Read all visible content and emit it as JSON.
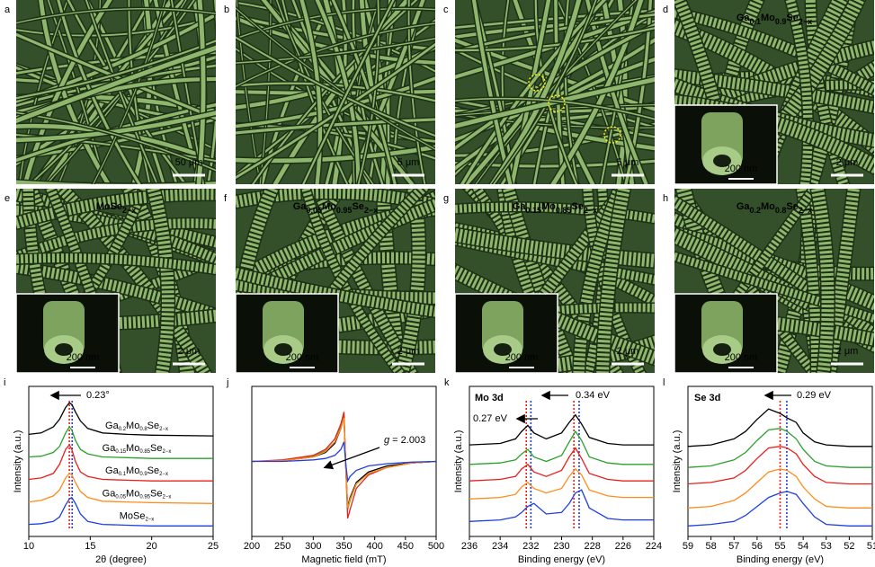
{
  "panels": [
    {
      "label": "a",
      "scale_bar": "50 μm"
    },
    {
      "label": "b",
      "scale_bar": "5 μm"
    },
    {
      "label": "c",
      "scale_bar": "5 μm"
    },
    {
      "label": "d",
      "formula": [
        "Ga",
        "0.1",
        "Mo",
        "0.9",
        "Se",
        "2−x"
      ],
      "inset_scale_bar": "200 nm",
      "scale_bar": "2 μm"
    },
    {
      "label": "e",
      "formula": [
        "MoSe",
        "2−x"
      ],
      "inset_scale_bar": "200 nm",
      "scale_bar": "2 μm"
    },
    {
      "label": "f",
      "formula": [
        "Ga",
        "0.05",
        "Mo",
        "0.95",
        "Se",
        "2−x"
      ],
      "inset_scale_bar": "200 nm",
      "scale_bar": "2 μm"
    },
    {
      "label": "g",
      "formula": [
        "Ga",
        "0.15",
        "Mo",
        "0.85",
        "Se",
        "2−x"
      ],
      "inset_scale_bar": "200 nm",
      "scale_bar": "2 μm"
    },
    {
      "label": "h",
      "formula": [
        "Ga",
        "0.2",
        "Mo",
        "0.8",
        "Se",
        "2−x"
      ],
      "inset_scale_bar": "200 nm",
      "scale_bar": "2 μm"
    }
  ],
  "chart_data": [
    {
      "type": "line",
      "label": "i",
      "xlabel": "2θ (degree)",
      "ylabel": "Intensity (a.u.)",
      "xlim": [
        10,
        25
      ],
      "xticks": [
        10,
        15,
        20,
        25
      ],
      "ylim": [
        0,
        10
      ],
      "x": [
        10,
        11,
        12,
        12.5,
        13,
        13.3,
        13.5,
        13.8,
        14.2,
        14.8,
        16,
        18,
        20,
        25
      ],
      "series": [
        {
          "name": [
            "Ga",
            "0.2",
            "Mo",
            "0.8",
            "Se",
            "2−x"
          ],
          "color": "#000000",
          "values": [
            6.8,
            6.9,
            7.3,
            7.8,
            8.6,
            8.9,
            8.8,
            8.3,
            7.7,
            7.2,
            6.9,
            6.8,
            6.75,
            6.7
          ]
        },
        {
          "name": [
            "Ga",
            "0.15",
            "Mo",
            "0.85",
            "Se",
            "2−x"
          ],
          "color": "#2ca02c",
          "values": [
            5.3,
            5.35,
            5.6,
            6.0,
            6.9,
            7.3,
            7.1,
            6.4,
            5.8,
            5.5,
            5.3,
            5.25,
            5.2,
            5.2
          ]
        },
        {
          "name": [
            "Ga",
            "0.1",
            "Mo",
            "0.9",
            "Se",
            "2−x"
          ],
          "color": "#e8201c",
          "values": [
            3.8,
            3.9,
            4.2,
            4.8,
            5.8,
            6.1,
            5.8,
            5.0,
            4.3,
            4.0,
            3.8,
            3.75,
            3.7,
            3.7
          ]
        },
        {
          "name": [
            "Ga",
            "0.05",
            "Mo",
            "0.95",
            "Se",
            "2−x"
          ],
          "color": "#ff8c1a",
          "values": [
            2.3,
            2.4,
            2.7,
            3.1,
            3.9,
            4.2,
            4.1,
            3.6,
            3.0,
            2.6,
            2.35,
            2.3,
            2.25,
            2.2
          ]
        },
        {
          "name": [
            "MoSe",
            "2−x"
          ],
          "color": "#1f3fe0",
          "values": [
            0.8,
            0.85,
            1.0,
            1.3,
            2.1,
            2.5,
            2.6,
            2.2,
            1.5,
            1.0,
            0.8,
            0.75,
            0.7,
            0.7
          ]
        }
      ],
      "markers": [
        {
          "x": 13.3,
          "color": "#e8201c"
        },
        {
          "x": 13.53,
          "color": "#1f3fe0"
        }
      ],
      "annotations": [
        "0.23°"
      ]
    },
    {
      "type": "line",
      "label": "j",
      "xlabel": "Magnetic field (mT)",
      "xlim": [
        200,
        500
      ],
      "xticks": [
        200,
        250,
        300,
        350,
        400,
        450,
        500
      ],
      "ylim": [
        0,
        10
      ],
      "x": [
        200,
        250,
        300,
        320,
        335,
        345,
        350,
        353,
        356,
        360,
        370,
        390,
        420,
        460,
        500
      ],
      "series": [
        {
          "color": "#000000",
          "values": [
            5.0,
            5.05,
            5.3,
            5.6,
            6.2,
            7.2,
            8.0,
            4.5,
            2.0,
            2.6,
            3.6,
            4.3,
            4.7,
            4.9,
            5.0
          ]
        },
        {
          "color": "#2ca02c",
          "values": [
            5.0,
            5.05,
            5.35,
            5.7,
            6.3,
            7.3,
            8.1,
            4.5,
            1.8,
            2.4,
            3.5,
            4.2,
            4.6,
            4.9,
            5.0
          ]
        },
        {
          "color": "#e8201c",
          "values": [
            5.0,
            5.1,
            5.4,
            5.8,
            6.5,
            7.5,
            8.3,
            4.5,
            1.2,
            1.8,
            3.2,
            4.1,
            4.6,
            4.9,
            5.0
          ]
        },
        {
          "color": "#ff8c1a",
          "values": [
            5.0,
            5.05,
            5.3,
            5.65,
            6.3,
            7.2,
            7.9,
            4.5,
            1.9,
            2.5,
            3.5,
            4.2,
            4.6,
            4.9,
            5.0
          ]
        },
        {
          "color": "#1f3fe0",
          "values": [
            5.0,
            5.0,
            5.1,
            5.2,
            5.4,
            5.8,
            6.3,
            4.8,
            3.7,
            4.0,
            4.4,
            4.7,
            4.85,
            4.95,
            5.0
          ]
        }
      ],
      "annotations": [
        "g",
        " = 2.003"
      ]
    },
    {
      "type": "line",
      "label": "k",
      "xlabel": "Binding energy (eV)",
      "ylabel": "Intensity (a.u.)",
      "xlim": [
        236,
        224
      ],
      "xticks": [
        236,
        234,
        232,
        230,
        228,
        226,
        224
      ],
      "ylim": [
        0,
        10
      ],
      "x": [
        236,
        234,
        233,
        232.6,
        232.2,
        231.8,
        231,
        230,
        229.5,
        229.1,
        228.7,
        228.2,
        227,
        226,
        224
      ],
      "series": [
        {
          "color": "#000000",
          "values": [
            6.1,
            6.2,
            6.5,
            7.0,
            7.4,
            6.9,
            6.5,
            6.9,
            7.6,
            8.1,
            7.5,
            6.6,
            6.2,
            6.1,
            6.1
          ]
        },
        {
          "color": "#2ca02c",
          "values": [
            4.8,
            4.9,
            5.1,
            5.5,
            5.8,
            5.3,
            5.0,
            5.4,
            6.3,
            7.0,
            6.4,
            5.3,
            4.9,
            4.8,
            4.8
          ]
        },
        {
          "color": "#e8201c",
          "values": [
            3.7,
            3.8,
            4.0,
            4.5,
            4.8,
            4.3,
            4.0,
            4.4,
            5.3,
            5.9,
            5.2,
            4.2,
            3.8,
            3.7,
            3.7
          ]
        },
        {
          "color": "#ff8c1a",
          "values": [
            2.5,
            2.6,
            2.8,
            3.3,
            3.6,
            3.2,
            2.9,
            3.2,
            4.0,
            4.5,
            4.1,
            3.1,
            2.7,
            2.6,
            2.6
          ]
        },
        {
          "color": "#1f3fe0",
          "values": [
            1.0,
            1.1,
            1.3,
            1.6,
            2.0,
            2.2,
            1.5,
            1.6,
            2.2,
            2.9,
            3.1,
            1.9,
            1.2,
            1.1,
            1.1
          ]
        }
      ],
      "markers": [
        {
          "x": 232.3,
          "color": "#e8201c"
        },
        {
          "x": 232.0,
          "color": "#1f3fe0"
        },
        {
          "x": 229.2,
          "color": "#e8201c"
        },
        {
          "x": 228.86,
          "color": "#1f3fe0"
        }
      ],
      "annotations": [
        "Mo 3d",
        "0.27 eV",
        "0.34 eV"
      ]
    },
    {
      "type": "line",
      "label": "l",
      "xlabel": "Binding energy (eV)",
      "ylabel": "Intensity (a.u.)",
      "xlim": [
        59,
        51
      ],
      "xticks": [
        59,
        58,
        57,
        56,
        55,
        54,
        53,
        52,
        51
      ],
      "ylim": [
        0,
        10
      ],
      "x": [
        59,
        58,
        57,
        56.5,
        56,
        55.5,
        55,
        54.7,
        54.3,
        54,
        53.5,
        53,
        52,
        51
      ],
      "series": [
        {
          "color": "#000000",
          "values": [
            6.0,
            6.1,
            6.5,
            7.0,
            7.8,
            8.5,
            8.2,
            7.9,
            7.6,
            6.9,
            6.3,
            6.1,
            6.0,
            6.0
          ]
        },
        {
          "color": "#2ca02c",
          "values": [
            4.6,
            4.7,
            5.1,
            5.6,
            6.4,
            7.1,
            7.2,
            7.0,
            6.5,
            5.8,
            5.0,
            4.7,
            4.6,
            4.6
          ]
        },
        {
          "color": "#e8201c",
          "values": [
            3.5,
            3.6,
            3.9,
            4.4,
            5.2,
            5.9,
            6.0,
            5.9,
            5.5,
            4.8,
            4.0,
            3.6,
            3.5,
            3.5
          ]
        },
        {
          "color": "#ff8c1a",
          "values": [
            1.9,
            2.0,
            2.4,
            2.9,
            3.6,
            4.3,
            4.5,
            4.4,
            4.0,
            3.3,
            2.5,
            2.0,
            1.9,
            1.9
          ]
        },
        {
          "color": "#1f3fe0",
          "values": [
            0.7,
            0.8,
            1.0,
            1.4,
            2.0,
            2.6,
            2.9,
            3.0,
            2.8,
            2.2,
            1.3,
            0.8,
            0.7,
            0.7
          ]
        }
      ],
      "markers": [
        {
          "x": 55.0,
          "color": "#e8201c"
        },
        {
          "x": 54.71,
          "color": "#1f3fe0"
        }
      ],
      "annotations": [
        "Se 3d",
        "0.29 eV"
      ]
    }
  ]
}
